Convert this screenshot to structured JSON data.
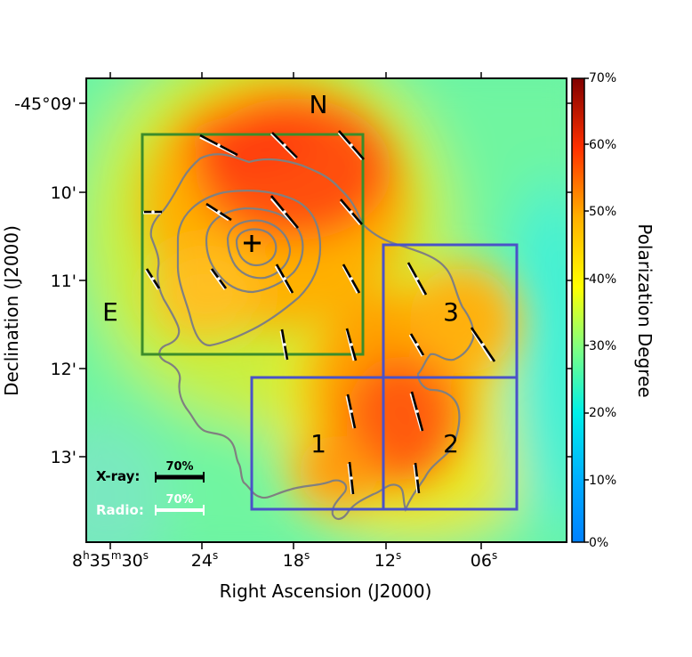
{
  "chart_data": {
    "type": "heatmap",
    "xlabel": "Right Ascension (J2000)",
    "ylabel": "Declination (J2000)",
    "colorbar_label": "Polarization Degree",
    "x_ticks": [
      {
        "label": "8h35m30s",
        "parts": [
          "8",
          "h",
          "35",
          "m",
          "30",
          "s"
        ]
      },
      {
        "label": "24s",
        "parts": [
          "24",
          "s"
        ]
      },
      {
        "label": "18s",
        "parts": [
          "18",
          "s"
        ]
      },
      {
        "label": "12s",
        "parts": [
          "12",
          "s"
        ]
      },
      {
        "label": "06s",
        "parts": [
          "06",
          "s"
        ]
      }
    ],
    "y_ticks": [
      "-45°09'",
      "10'",
      "11'",
      "12'",
      "13'"
    ],
    "colorbar_ticks": [
      "0%",
      "10%",
      "20%",
      "30%",
      "40%",
      "50%",
      "60%",
      "70%"
    ],
    "colorbar_range": [
      0,
      70
    ],
    "colormap": "jet",
    "region_labels": [
      "N",
      "E",
      "1",
      "2",
      "3"
    ],
    "legend": {
      "xray_label": "X-ray:",
      "xray_scale": "70%",
      "radio_label": "Radio:",
      "radio_scale": "70%"
    },
    "colors": {
      "north_box": "#3c8c2a",
      "region_boxes": "#4a52c8",
      "contours": "#808080",
      "xray_vectors": "#000000",
      "radio_vectors": "#ffffff"
    }
  }
}
